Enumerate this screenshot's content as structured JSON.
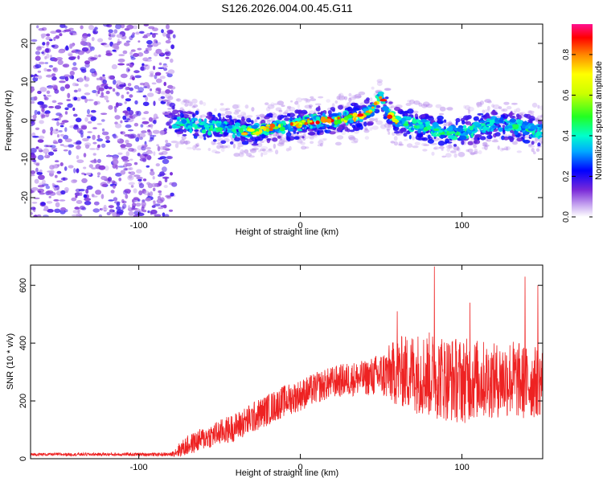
{
  "figure_title": "S126.2026.004.00.45.G11",
  "colors": {
    "snr_line": "#ee2222",
    "scatter_noise": "#8a4ad8",
    "background": "#ffffff"
  },
  "chart_data": [
    {
      "type": "heatmap",
      "title": "",
      "xlabel": "Height of straight line (km)",
      "ylabel": "Frequency (Hz)",
      "xlim": [
        -167,
        150
      ],
      "ylim": [
        -25,
        25
      ],
      "xticks": [
        -100,
        0,
        100
      ],
      "yticks": [
        -20,
        -10,
        0,
        10,
        20
      ],
      "grid": false,
      "colorbar": {
        "label": "Normalized spectral amplitude",
        "range": [
          0,
          0.95
        ],
        "ticks": [
          0.0,
          0.2,
          0.4,
          0.6,
          0.8
        ],
        "colormap": "rainbow"
      },
      "noise_region_x": [
        -167,
        -78
      ],
      "ridge": {
        "x": [
          -78,
          -70,
          -60,
          -50,
          -40,
          -30,
          -20,
          -10,
          0,
          10,
          20,
          30,
          40,
          45,
          50,
          55,
          60,
          70,
          80,
          90,
          100,
          110,
          120,
          130,
          140,
          150
        ],
        "y": [
          0,
          -1,
          -1.5,
          -2,
          -2.5,
          -3,
          -2,
          -1.5,
          -1,
          0,
          0,
          0.5,
          1.5,
          3,
          6,
          1.5,
          0,
          -1,
          -2,
          -3,
          -3,
          -2,
          -1,
          -1.5,
          -2,
          -3
        ]
      }
    },
    {
      "type": "line",
      "title": "",
      "xlabel": "Height of straight line (km)",
      "ylabel": "SNR (10 * v/v)",
      "xlim": [
        -167,
        150
      ],
      "ylim": [
        0,
        670
      ],
      "xticks": [
        -100,
        0,
        100
      ],
      "yticks": [
        0,
        200,
        400,
        600
      ],
      "grid": false,
      "envelope": {
        "x": [
          -167,
          -80,
          -75,
          -70,
          -60,
          -50,
          -40,
          -30,
          -20,
          -10,
          0,
          10,
          20,
          30,
          40,
          50,
          60,
          70,
          80,
          90,
          100,
          110,
          120,
          130,
          140,
          150
        ],
        "mean": [
          15,
          15,
          30,
          45,
          70,
          90,
          110,
          140,
          170,
          200,
          220,
          245,
          265,
          275,
          280,
          290,
          300,
          300,
          290,
          280,
          270,
          275,
          270,
          280,
          260,
          270
        ],
        "amplitude": [
          5,
          6,
          25,
          35,
          40,
          45,
          50,
          55,
          55,
          55,
          55,
          55,
          55,
          60,
          60,
          80,
          120,
          140,
          150,
          150,
          150,
          140,
          130,
          140,
          130,
          120
        ],
        "peaks": [
          [
            83,
            665
          ],
          [
            139,
            630
          ],
          [
            147,
            600
          ],
          [
            60,
            510
          ],
          [
            105,
            540
          ]
        ]
      }
    }
  ]
}
